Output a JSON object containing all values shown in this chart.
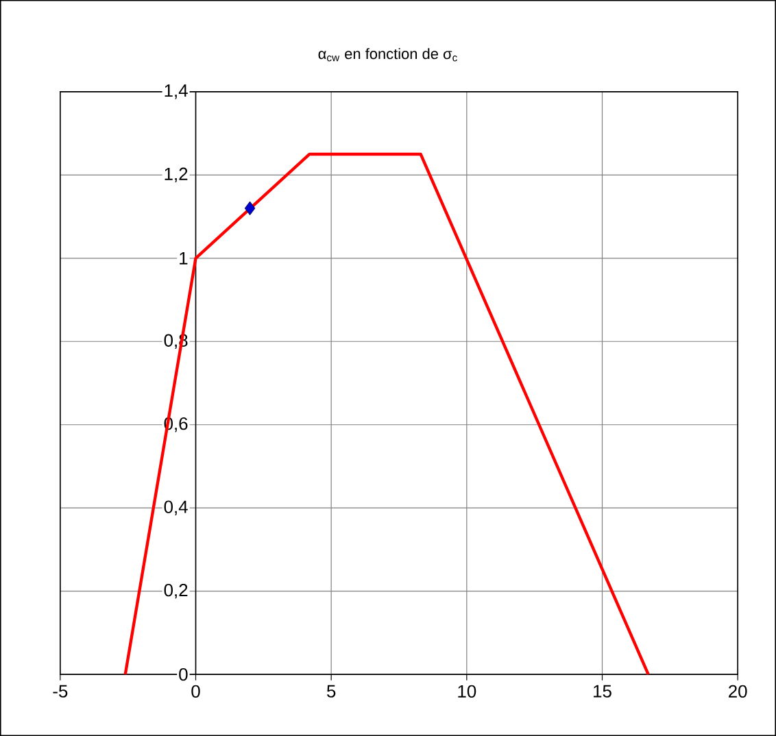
{
  "chart_data": {
    "type": "line",
    "title": "α$_{cw}$ en fonction de σ$_{c}$",
    "series": [
      {
        "color": "#ff0000",
        "x": [
          -2.6,
          0,
          4.2,
          8.3,
          16.7
        ],
        "values": [
          0,
          1,
          1.25,
          1.25,
          0
        ]
      },
      {
        "type": "scatter",
        "color": "#0000cc",
        "marker": "diamond",
        "x": [
          2
        ],
        "values": [
          1.12
        ]
      }
    ],
    "xlim": [
      -5,
      20
    ],
    "xticks": [
      -5,
      0,
      5,
      10,
      15,
      20
    ],
    "ylim": [
      0,
      1.4
    ],
    "yticks": [
      {
        "value": 0,
        "label": "0"
      },
      {
        "value": 0.2,
        "label": "0,2"
      },
      {
        "value": 0.4,
        "label": "0,4"
      },
      {
        "value": 0.6,
        "label": "0,6"
      },
      {
        "value": 0.8,
        "label": "0,8"
      },
      {
        "value": 1,
        "label": "1"
      },
      {
        "value": 1.2,
        "label": "1,2"
      },
      {
        "value": 1.4,
        "label": "1,4"
      }
    ],
    "grid": true
  }
}
